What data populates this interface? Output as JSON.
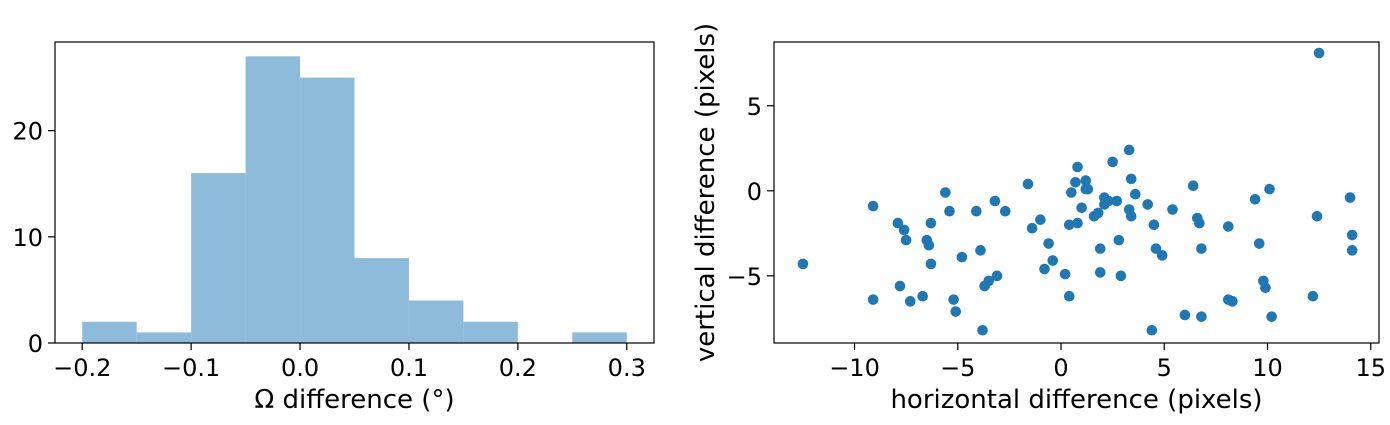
{
  "chart_data": [
    {
      "type": "bar",
      "subtype": "histogram",
      "xlabel": "Ω difference (°)",
      "ylabel": "",
      "xlim": [
        -0.225,
        0.325
      ],
      "ylim": [
        0,
        28.35
      ],
      "color": "#8fbbda",
      "bins": [
        {
          "x0": -0.2,
          "x1": -0.15,
          "count": 2
        },
        {
          "x0": -0.15,
          "x1": -0.1,
          "count": 1
        },
        {
          "x0": -0.1,
          "x1": -0.05,
          "count": 16
        },
        {
          "x0": -0.05,
          "x1": 0.0,
          "count": 27
        },
        {
          "x0": 0.0,
          "x1": 0.05,
          "count": 25
        },
        {
          "x0": 0.05,
          "x1": 0.1,
          "count": 8
        },
        {
          "x0": 0.1,
          "x1": 0.15,
          "count": 4
        },
        {
          "x0": 0.15,
          "x1": 0.2,
          "count": 2
        },
        {
          "x0": 0.2,
          "x1": 0.25,
          "count": 0
        },
        {
          "x0": 0.25,
          "x1": 0.3,
          "count": 1
        }
      ],
      "xticks": [
        {
          "value": -0.2,
          "label": "−0.2"
        },
        {
          "value": -0.1,
          "label": "−0.1"
        },
        {
          "value": 0.0,
          "label": "0.0"
        },
        {
          "value": 0.1,
          "label": "0.1"
        },
        {
          "value": 0.2,
          "label": "0.2"
        },
        {
          "value": 0.3,
          "label": "0.3"
        }
      ],
      "yticks": [
        {
          "value": 0,
          "label": "0"
        },
        {
          "value": 10,
          "label": "10"
        },
        {
          "value": 20,
          "label": "20"
        }
      ],
      "grid": false
    },
    {
      "type": "scatter",
      "xlabel": "horizontal difference (pixels)",
      "ylabel": "vertical difference (pixels)",
      "xlim": [
        -13.9,
        15.4
      ],
      "ylim": [
        -8.95,
        8.75
      ],
      "color": "#1f77b4",
      "points": [
        [
          -12.5,
          -4.3
        ],
        [
          -9.1,
          -0.9
        ],
        [
          -9.1,
          -6.4
        ],
        [
          -7.9,
          -1.9
        ],
        [
          -7.6,
          -2.3
        ],
        [
          -7.5,
          -2.9
        ],
        [
          -7.8,
          -5.6
        ],
        [
          -7.3,
          -6.5
        ],
        [
          -6.7,
          -6.2
        ],
        [
          -6.5,
          -2.9
        ],
        [
          -6.4,
          -3.2
        ],
        [
          -6.3,
          -1.9
        ],
        [
          -6.3,
          -4.3
        ],
        [
          -5.6,
          -0.1
        ],
        [
          -5.4,
          -1.2
        ],
        [
          -5.2,
          -6.4
        ],
        [
          -5.1,
          -7.1
        ],
        [
          -4.8,
          -3.9
        ],
        [
          -4.1,
          -1.2
        ],
        [
          -3.9,
          -3.5
        ],
        [
          -3.8,
          -8.2
        ],
        [
          -3.7,
          -5.6
        ],
        [
          -3.5,
          -5.3
        ],
        [
          -3.2,
          -0.6
        ],
        [
          -3.1,
          -5.0
        ],
        [
          -2.7,
          -1.2
        ],
        [
          -1.6,
          0.4
        ],
        [
          -1.4,
          -2.2
        ],
        [
          -1.0,
          -1.7
        ],
        [
          -0.8,
          -4.6
        ],
        [
          -0.6,
          -3.1
        ],
        [
          -0.4,
          -4.1
        ],
        [
          0.2,
          -4.9
        ],
        [
          0.4,
          -6.2
        ],
        [
          0.4,
          -2.0
        ],
        [
          0.5,
          -0.1
        ],
        [
          0.7,
          0.5
        ],
        [
          0.8,
          1.4
        ],
        [
          0.8,
          -1.9
        ],
        [
          1.0,
          -1.0
        ],
        [
          1.2,
          0.6
        ],
        [
          1.2,
          0.1
        ],
        [
          1.3,
          0.1
        ],
        [
          1.6,
          -1.5
        ],
        [
          1.8,
          -1.3
        ],
        [
          1.9,
          -4.8
        ],
        [
          1.9,
          -3.4
        ],
        [
          2.1,
          -0.4
        ],
        [
          2.1,
          -0.8
        ],
        [
          2.3,
          -0.6
        ],
        [
          2.5,
          1.7
        ],
        [
          2.7,
          -0.6
        ],
        [
          2.8,
          -2.9
        ],
        [
          2.9,
          -5.0
        ],
        [
          3.3,
          2.4
        ],
        [
          3.3,
          -1.1
        ],
        [
          3.4,
          0.7
        ],
        [
          3.4,
          -1.5
        ],
        [
          3.6,
          -0.2
        ],
        [
          4.2,
          -0.8
        ],
        [
          4.4,
          -8.2
        ],
        [
          4.5,
          -2.0
        ],
        [
          4.6,
          -3.4
        ],
        [
          4.9,
          -3.8
        ],
        [
          5.4,
          -1.1
        ],
        [
          6.0,
          -7.3
        ],
        [
          6.4,
          0.3
        ],
        [
          6.6,
          -1.6
        ],
        [
          6.7,
          -1.9
        ],
        [
          6.8,
          -7.4
        ],
        [
          6.8,
          -3.4
        ],
        [
          8.1,
          -6.4
        ],
        [
          8.1,
          -2.1
        ],
        [
          8.3,
          -6.5
        ],
        [
          9.4,
          -0.5
        ],
        [
          9.6,
          -3.1
        ],
        [
          9.8,
          -5.3
        ],
        [
          9.9,
          -5.7
        ],
        [
          10.1,
          0.1
        ],
        [
          10.2,
          -7.4
        ],
        [
          12.2,
          -6.2
        ],
        [
          12.4,
          -1.5
        ],
        [
          12.5,
          8.1
        ],
        [
          14.0,
          -0.4
        ],
        [
          14.1,
          -2.6
        ],
        [
          14.1,
          -3.5
        ]
      ],
      "xticks": [
        {
          "value": -10,
          "label": "−10"
        },
        {
          "value": -5,
          "label": "−5"
        },
        {
          "value": 0,
          "label": "0"
        },
        {
          "value": 5,
          "label": "5"
        },
        {
          "value": 10,
          "label": "10"
        },
        {
          "value": 15,
          "label": "15"
        }
      ],
      "yticks": [
        {
          "value": -5,
          "label": "−5"
        },
        {
          "value": 0,
          "label": "0"
        },
        {
          "value": 5,
          "label": "5"
        }
      ],
      "grid": false
    }
  ]
}
